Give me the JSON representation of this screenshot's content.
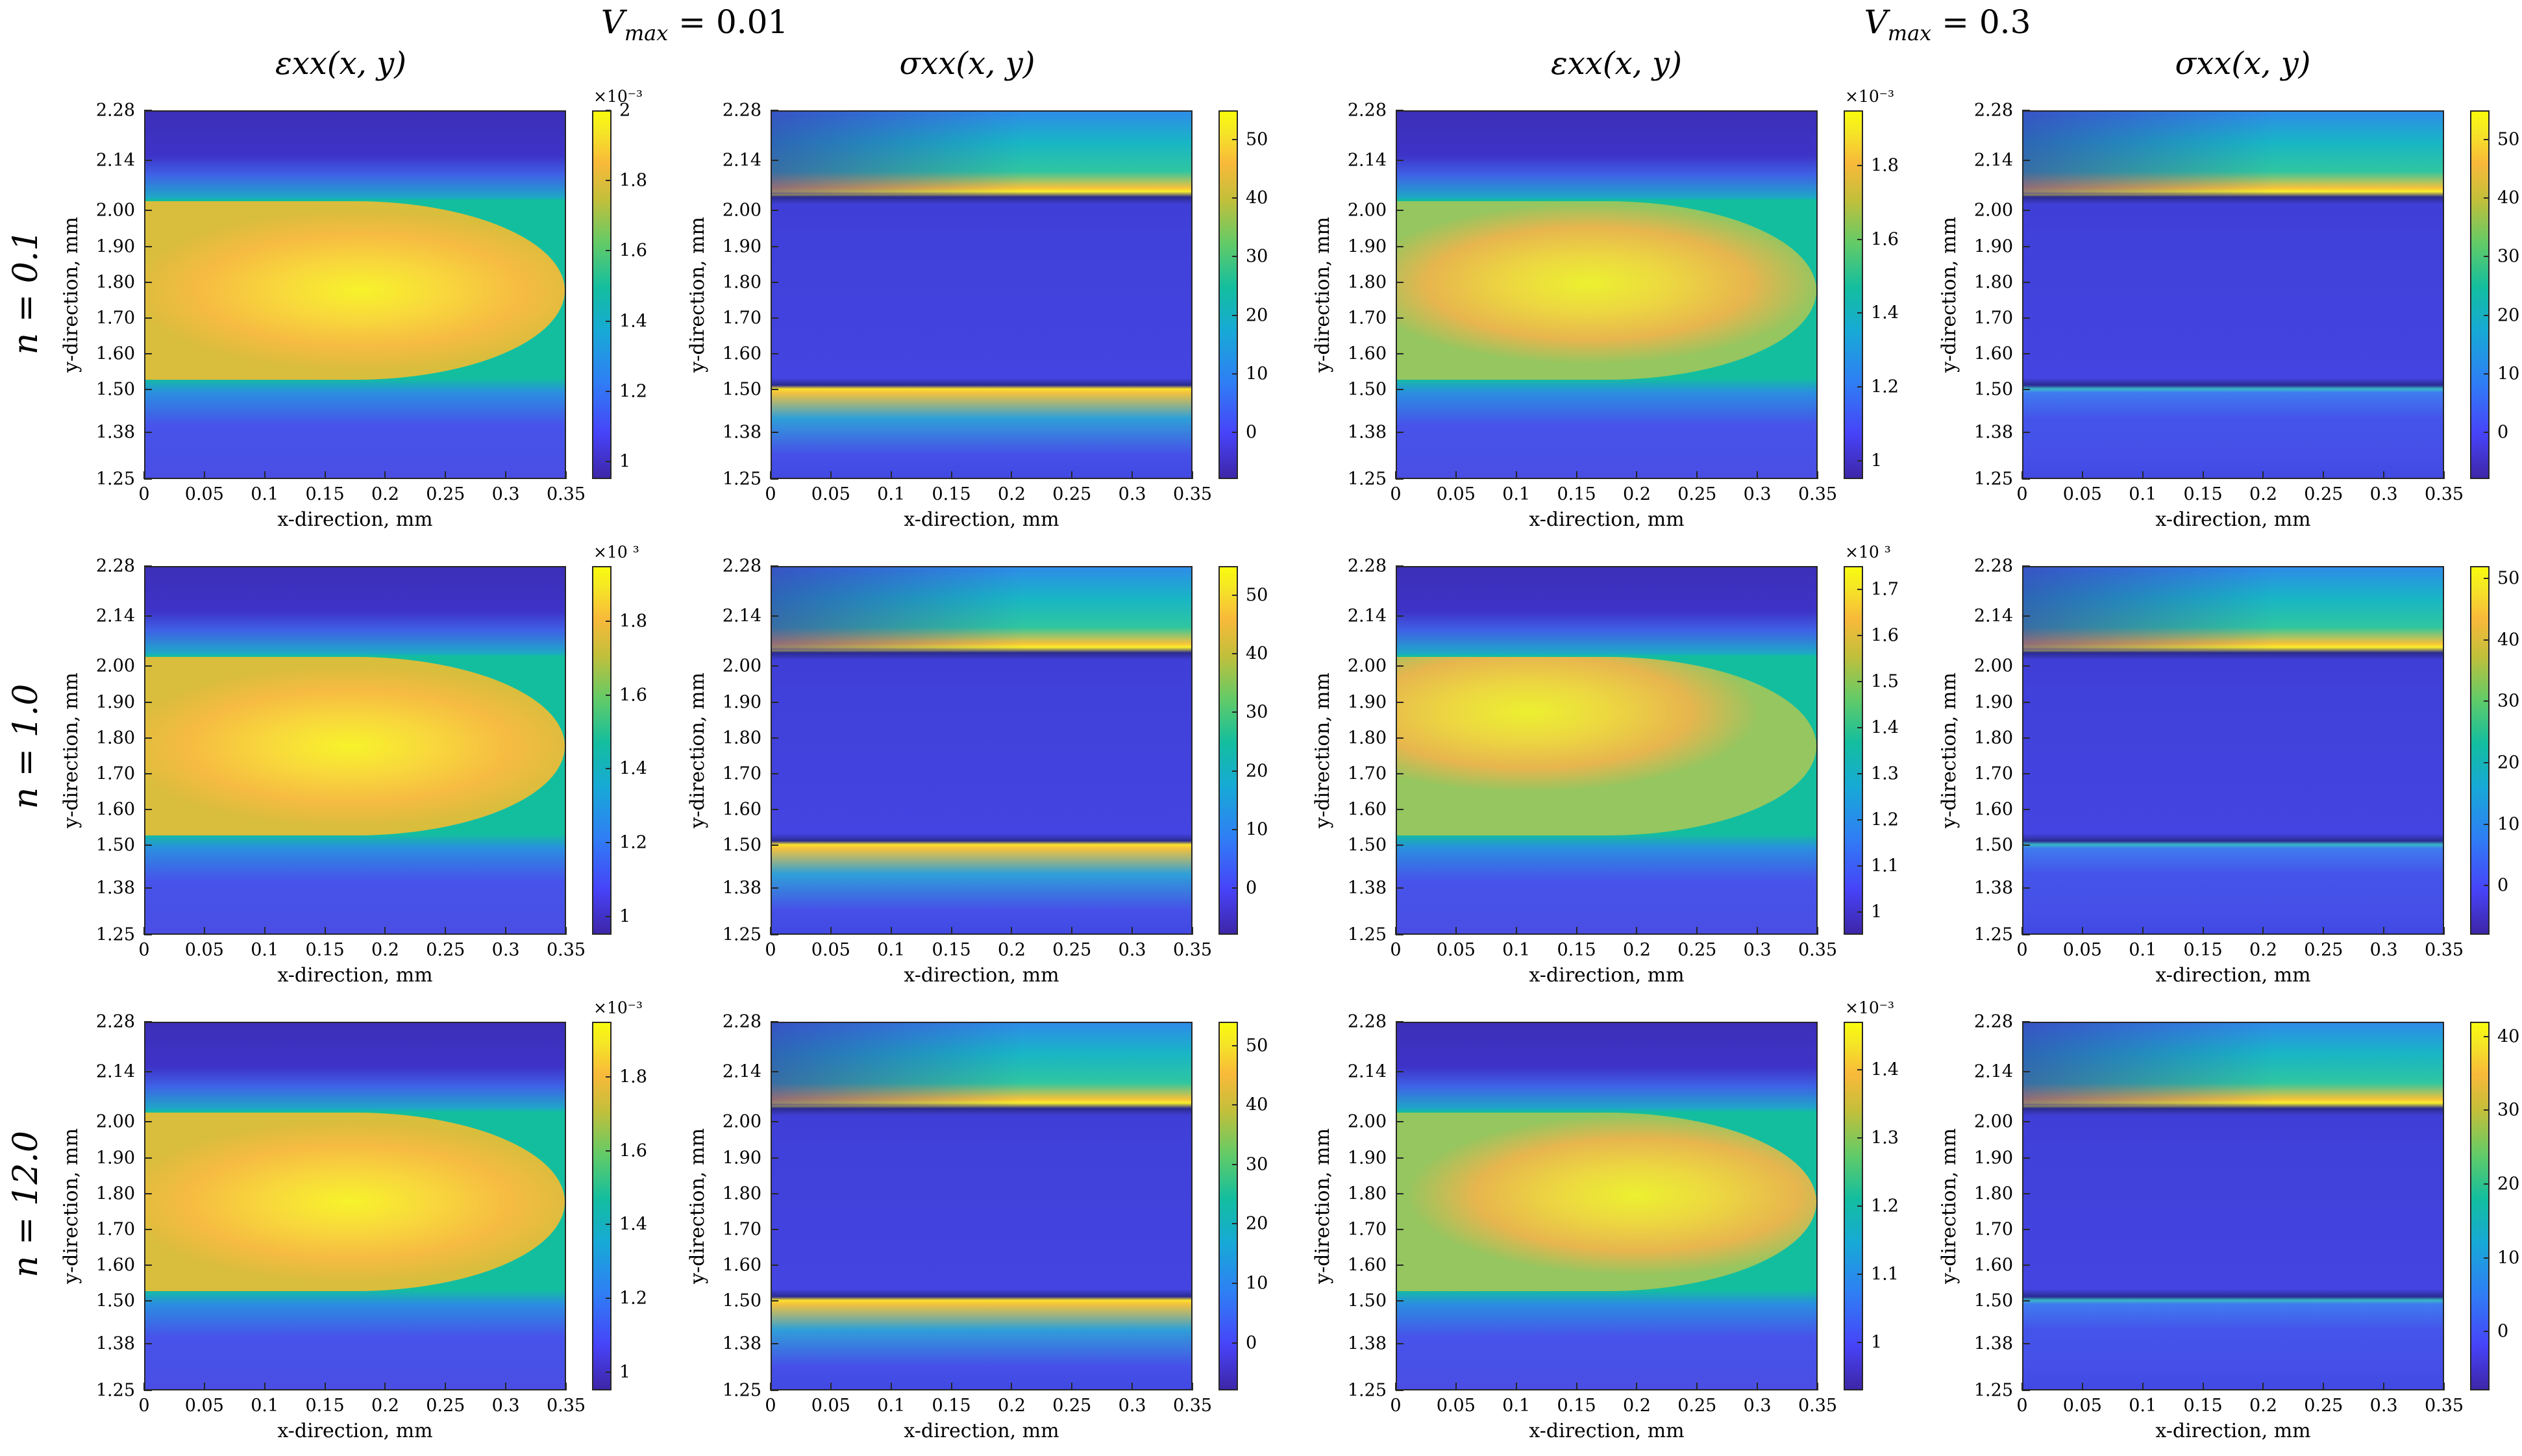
{
  "groups": [
    {
      "title": "V_max = 0.01",
      "title_main": "V",
      "title_sub": "max",
      "title_rest": " = 0.01"
    },
    {
      "title": "V_max = 0.3",
      "title_main": "V",
      "title_sub": "max",
      "title_rest": " = 0.3"
    }
  ],
  "column_titles": [
    "εxx(x, y)",
    "σxx(x, y)",
    "εxx(x, y)",
    "σxx(x, y)"
  ],
  "row_labels": [
    "n = 0.1",
    "n = 1.0",
    "n = 12.0"
  ],
  "xlabel": "x-direction, mm",
  "ylabel": "y-direction, mm",
  "exponent_label_a": "×10⁻³",
  "exponent_label_b": "×10 ³",
  "chart_data": [
    {
      "type": "heatmap",
      "row": 0,
      "col": 0,
      "quantity": "strain_xx",
      "V_max": 0.01,
      "n": 0.1,
      "xlim": [
        0,
        0.35
      ],
      "ylim": [
        1.25,
        2.28
      ],
      "colorbar_range": [
        0.95,
        2.0
      ],
      "colorbar_ticks": [
        "1",
        "1.2",
        "1.4",
        "1.6",
        "1.8",
        "2"
      ],
      "colorbar_exponent": "×10⁻³",
      "hot_y": 1.78,
      "hot_x": 0.18
    },
    {
      "type": "heatmap",
      "row": 0,
      "col": 1,
      "quantity": "stress_xx",
      "V_max": 0.01,
      "n": 0.1,
      "xlim": [
        0,
        0.35
      ],
      "ylim": [
        1.25,
        2.28
      ],
      "colorbar_range": [
        -8,
        55
      ],
      "colorbar_ticks": [
        "0",
        "10",
        "20",
        "30",
        "40",
        "50"
      ],
      "colorbar_exponent": "",
      "band_upper_y": 2.05,
      "band_lower_y": 1.5
    },
    {
      "type": "heatmap",
      "row": 0,
      "col": 2,
      "quantity": "strain_xx",
      "V_max": 0.3,
      "n": 0.1,
      "xlim": [
        0,
        0.35
      ],
      "ylim": [
        1.25,
        2.28
      ],
      "colorbar_range": [
        0.95,
        1.95
      ],
      "colorbar_ticks": [
        "1",
        "1.2",
        "1.4",
        "1.6",
        "1.8"
      ],
      "colorbar_exponent": "×10⁻³",
      "hot_y": 1.8,
      "hot_x": 0.16
    },
    {
      "type": "heatmap",
      "row": 0,
      "col": 3,
      "quantity": "stress_xx",
      "V_max": 0.3,
      "n": 0.1,
      "xlim": [
        0,
        0.35
      ],
      "ylim": [
        1.25,
        2.28
      ],
      "colorbar_range": [
        -8,
        55
      ],
      "colorbar_ticks": [
        "0",
        "10",
        "20",
        "30",
        "40",
        "50"
      ],
      "colorbar_exponent": "",
      "band_upper_y": 2.05,
      "band_lower_y": 1.5
    },
    {
      "type": "heatmap",
      "row": 1,
      "col": 0,
      "quantity": "strain_xx",
      "V_max": 0.01,
      "n": 1.0,
      "xlim": [
        0,
        0.35
      ],
      "ylim": [
        1.25,
        2.28
      ],
      "colorbar_range": [
        0.95,
        1.95
      ],
      "colorbar_ticks": [
        "1",
        "1.2",
        "1.4",
        "1.6",
        "1.8"
      ],
      "colorbar_exponent": "×10 ³",
      "hot_y": 1.78,
      "hot_x": 0.17
    },
    {
      "type": "heatmap",
      "row": 1,
      "col": 1,
      "quantity": "stress_xx",
      "V_max": 0.01,
      "n": 1.0,
      "xlim": [
        0,
        0.35
      ],
      "ylim": [
        1.25,
        2.28
      ],
      "colorbar_range": [
        -8,
        55
      ],
      "colorbar_ticks": [
        "0",
        "10",
        "20",
        "30",
        "40",
        "50"
      ],
      "colorbar_exponent": "",
      "band_upper_y": 2.05,
      "band_lower_y": 1.5
    },
    {
      "type": "heatmap",
      "row": 1,
      "col": 2,
      "quantity": "strain_xx",
      "V_max": 0.3,
      "n": 1.0,
      "xlim": [
        0,
        0.35
      ],
      "ylim": [
        1.25,
        2.28
      ],
      "colorbar_range": [
        0.95,
        1.75
      ],
      "colorbar_ticks": [
        "1",
        "1.1",
        "1.2",
        "1.3",
        "1.4",
        "1.5",
        "1.6",
        "1.7"
      ],
      "colorbar_exponent": "×10 ³",
      "hot_y": 1.88,
      "hot_x": 0.11
    },
    {
      "type": "heatmap",
      "row": 1,
      "col": 3,
      "quantity": "stress_xx",
      "V_max": 0.3,
      "n": 1.0,
      "xlim": [
        0,
        0.35
      ],
      "ylim": [
        1.25,
        2.28
      ],
      "colorbar_range": [
        -8,
        52
      ],
      "colorbar_ticks": [
        "0",
        "10",
        "20",
        "30",
        "40",
        "50"
      ],
      "colorbar_exponent": "",
      "band_upper_y": 2.05,
      "band_lower_y": 1.5
    },
    {
      "type": "heatmap",
      "row": 2,
      "col": 0,
      "quantity": "strain_xx",
      "V_max": 0.01,
      "n": 12.0,
      "xlim": [
        0,
        0.35
      ],
      "ylim": [
        1.25,
        2.28
      ],
      "colorbar_range": [
        0.95,
        1.95
      ],
      "colorbar_ticks": [
        "1",
        "1.2",
        "1.4",
        "1.6",
        "1.8"
      ],
      "colorbar_exponent": "×10⁻³",
      "hot_y": 1.78,
      "hot_x": 0.17
    },
    {
      "type": "heatmap",
      "row": 2,
      "col": 1,
      "quantity": "stress_xx",
      "V_max": 0.01,
      "n": 12.0,
      "xlim": [
        0,
        0.35
      ],
      "ylim": [
        1.25,
        2.28
      ],
      "colorbar_range": [
        -8,
        54
      ],
      "colorbar_ticks": [
        "0",
        "10",
        "20",
        "30",
        "40",
        "50"
      ],
      "colorbar_exponent": "",
      "band_upper_y": 2.05,
      "band_lower_y": 1.5
    },
    {
      "type": "heatmap",
      "row": 2,
      "col": 2,
      "quantity": "strain_xx",
      "V_max": 0.3,
      "n": 12.0,
      "xlim": [
        0,
        0.35
      ],
      "ylim": [
        1.25,
        2.28
      ],
      "colorbar_range": [
        0.93,
        1.47
      ],
      "colorbar_ticks": [
        "1",
        "1.1",
        "1.2",
        "1.3",
        "1.4"
      ],
      "colorbar_exponent": "×10⁻³",
      "hot_y": 1.8,
      "hot_x": 0.2
    },
    {
      "type": "heatmap",
      "row": 2,
      "col": 3,
      "quantity": "stress_xx",
      "V_max": 0.3,
      "n": 12.0,
      "xlim": [
        0,
        0.35
      ],
      "ylim": [
        1.25,
        2.28
      ],
      "colorbar_range": [
        -8,
        42
      ],
      "colorbar_ticks": [
        "0",
        "10",
        "20",
        "30",
        "40"
      ],
      "colorbar_exponent": "",
      "band_upper_y": 2.05,
      "band_lower_y": 1.5
    }
  ],
  "x_ticks": [
    "0",
    "0.05",
    "0.1",
    "0.15",
    "0.2",
    "0.25",
    "0.3",
    "0.35"
  ],
  "x_tick_values": [
    0,
    0.05,
    0.1,
    0.15,
    0.2,
    0.25,
    0.3,
    0.35
  ],
  "y_ticks": [
    "1.25",
    "1.38",
    "1.50",
    "1.60",
    "1.70",
    "1.80",
    "1.90",
    "2.00",
    "2.14",
    "2.28"
  ],
  "y_tick_values": [
    1.25,
    1.38,
    1.5,
    1.6,
    1.7,
    1.8,
    1.9,
    2.0,
    2.14,
    2.28
  ],
  "colors": {
    "cmap_low": "#3e26a8",
    "cmap_blue": "#4743f8",
    "cmap_mid": "#13be9f",
    "cmap_orange": "#f9b93a",
    "cmap_high": "#f9fb0e"
  }
}
